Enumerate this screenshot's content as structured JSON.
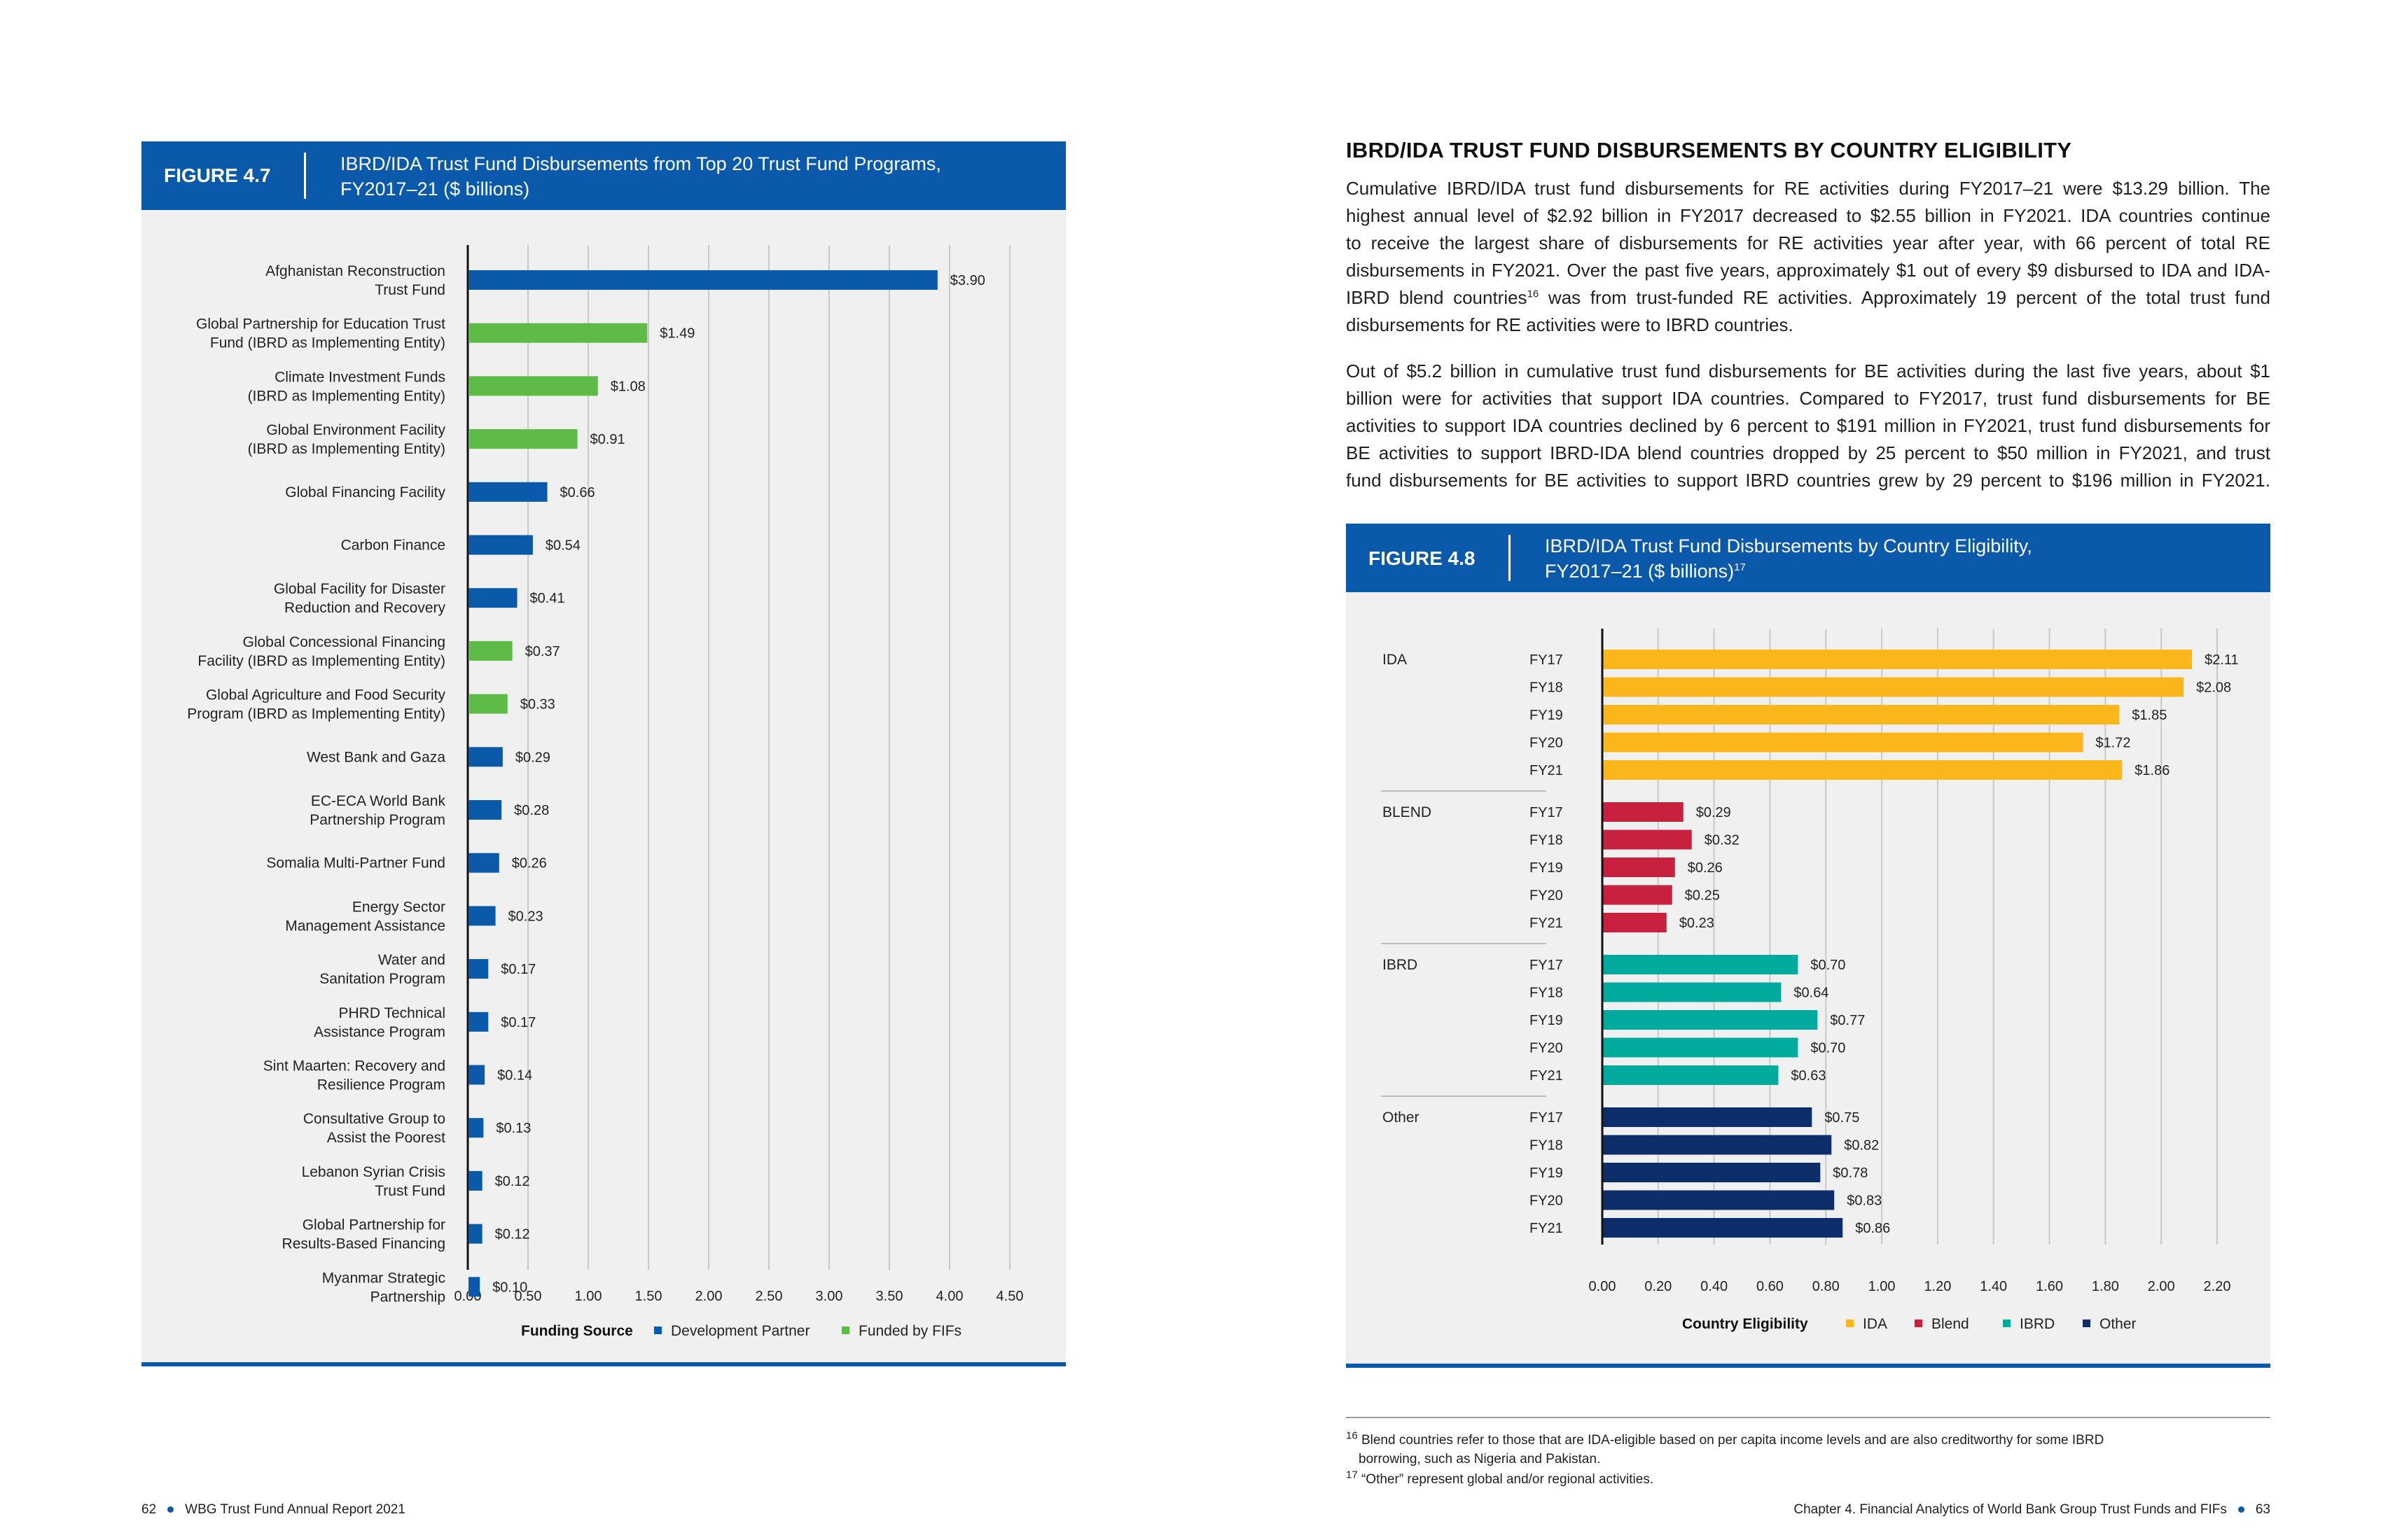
{
  "left_page": {
    "figure": {
      "label": "FIGURE 4.7",
      "title_line1": "IBRD/IDA Trust Fund Disbursements from Top 20 Trust Fund Programs,",
      "title_line2": "FY2017–21 ($ billions)"
    },
    "footer": {
      "page_number": "62",
      "report": "WBG Trust Fund Annual Report 2021"
    }
  },
  "right_page": {
    "heading": "IBRD/IDA TRUST FUND DISBURSEMENTS BY COUNTRY ELIGIBILITY",
    "paragraph1_lines": [
      "Cumulative IBRD/IDA trust fund disbursements for RE activities during FY2017–21 were $13.29 billion. The",
      "highest annual level of $2.92 billion in FY2017 decreased to $2.55 billion in FY2021. IDA countries continue",
      "to receive the largest share of disbursements for RE activities year after year, with 66 percent of total RE",
      "disbursements in FY2021. Over the past five years, approximately $1 out of every $9 disbursed to IDA and IDA-",
      "IBRD blend countries",
      "disbursements for RE activities were to IBRD countries."
    ],
    "paragraph1_sup": "16",
    "paragraph1_line5_rest": " was from trust-funded RE activities. Approximately 19 percent of the total trust fund",
    "paragraph2_lines": [
      "Out of $5.2 billion in cumulative trust fund disbursements for BE activities during the last five years, about $1",
      "billion were for activities that support IDA countries. Compared to FY2017, trust fund disbursements for BE",
      "activities to support IDA countries declined by 6 percent to $191 million in FY2021, trust fund disbursements for",
      "BE activities to support IBRD-IDA blend countries dropped by 25 percent to $50 million in FY2021, and trust",
      "fund disbursements for BE activities to support IBRD countries grew by 29 percent to $196 million in FY2021."
    ],
    "figure": {
      "label": "FIGURE 4.8",
      "title_line1": "IBRD/IDA Trust Fund Disbursements by Country Eligibility,",
      "title_line2": "FY2017–21 ($ billions)",
      "title_sup": "17"
    },
    "footnotes": [
      {
        "num": "16",
        "text": "Blend countries refer to those that are IDA-eligible based on per capita income levels and are also creditworthy for some IBRD",
        "text2": "borrowing, such as Nigeria and Pakistan."
      },
      {
        "num": "17",
        "text": "“Other” represent global and/or regional activities."
      }
    ],
    "footer": {
      "chapter": "Chapter 4. Financial Analytics of World Bank Group Trust Funds and FIFs",
      "page_number": "63"
    }
  },
  "chart_data": [
    {
      "type": "bar",
      "orientation": "horizontal",
      "categories": [
        [
          "Afghanistan Reconstruction",
          "Trust Fund"
        ],
        [
          "Global Partnership for Education Trust",
          "Fund (IBRD as Implementing Entity)"
        ],
        [
          "Climate Investment Funds",
          "(IBRD as Implementing Entity)"
        ],
        [
          "Global Environment Facility",
          "(IBRD as Implementing Entity)"
        ],
        [
          "Global Financing Facility"
        ],
        [
          "Carbon Finance"
        ],
        [
          "Global Facility for Disaster",
          "Reduction and Recovery"
        ],
        [
          "Global Concessional Financing",
          "Facility (IBRD as Implementing Entity)"
        ],
        [
          "Global Agriculture and Food Security",
          "Program (IBRD as Implementing Entity)"
        ],
        [
          "West Bank and Gaza"
        ],
        [
          "EC-ECA World Bank",
          "Partnership Program"
        ],
        [
          "Somalia Multi-Partner Fund"
        ],
        [
          "Energy Sector",
          "Management Assistance"
        ],
        [
          "Water and",
          "Sanitation Program"
        ],
        [
          "PHRD Technical",
          "Assistance Program"
        ],
        [
          "Sint Maarten: Recovery and",
          "Resilience Program"
        ],
        [
          "Consultative Group to",
          "Assist the Poorest"
        ],
        [
          "Lebanon Syrian Crisis",
          "Trust Fund"
        ],
        [
          "Global Partnership for",
          "Results-Based Financing"
        ],
        [
          "Myanmar Strategic",
          "Partnership"
        ]
      ],
      "values": [
        3.9,
        1.49,
        1.08,
        0.91,
        0.66,
        0.54,
        0.41,
        0.37,
        0.33,
        0.29,
        0.28,
        0.26,
        0.23,
        0.17,
        0.17,
        0.14,
        0.13,
        0.12,
        0.12,
        0.1
      ],
      "value_labels": [
        "$3.90",
        "$1.49",
        "$1.08",
        "$0.91",
        "$0.66",
        "$0.54",
        "$0.41",
        "$0.37",
        "$0.33",
        "$0.29",
        "$0.28",
        "$0.26",
        "$0.23",
        "$0.17",
        "$0.17",
        "$0.14",
        "$0.13",
        "$0.12",
        "$0.12",
        "$0.10"
      ],
      "source": [
        "dp",
        "fif",
        "fif",
        "fif",
        "dp",
        "dp",
        "dp",
        "fif",
        "fif",
        "dp",
        "dp",
        "dp",
        "dp",
        "dp",
        "dp",
        "dp",
        "dp",
        "dp",
        "dp",
        "dp"
      ],
      "xlim": [
        0,
        4.5
      ],
      "xticks": [
        "0.00",
        "0.50",
        "1.00",
        "1.50",
        "2.00",
        "2.50",
        "3.00",
        "3.50",
        "4.00",
        "4.50"
      ],
      "grid": true,
      "legend": {
        "title": "Funding Source",
        "position": "bottom",
        "items": [
          {
            "key": "dp",
            "name": "Development Partner",
            "color": "#0a59ab"
          },
          {
            "key": "fif",
            "name": "Funded by FIFs",
            "color": "#5dbb46"
          }
        ]
      }
    },
    {
      "type": "bar",
      "orientation": "horizontal",
      "groups": [
        {
          "name": "IDA",
          "key": "ida",
          "color": "#fbb61b",
          "years": [
            "FY17",
            "FY18",
            "FY19",
            "FY20",
            "FY21"
          ],
          "values": [
            2.11,
            2.08,
            1.85,
            1.72,
            1.86
          ],
          "value_labels": [
            "$2.11",
            "$2.08",
            "$1.85",
            "$1.72",
            "$1.86"
          ]
        },
        {
          "name": "BLEND",
          "key": "blend",
          "color": "#c8203f",
          "years": [
            "FY17",
            "FY18",
            "FY19",
            "FY20",
            "FY21"
          ],
          "values": [
            0.29,
            0.32,
            0.26,
            0.25,
            0.23
          ],
          "value_labels": [
            "$0.29",
            "$0.32",
            "$0.26",
            "$0.25",
            "$0.23"
          ]
        },
        {
          "name": "IBRD",
          "key": "ibrd",
          "color": "#00ab9e",
          "years": [
            "FY17",
            "FY18",
            "FY19",
            "FY20",
            "FY21"
          ],
          "values": [
            0.7,
            0.64,
            0.77,
            0.7,
            0.63
          ],
          "value_labels": [
            "$0.70",
            "$0.64",
            "$0.77",
            "$0.70",
            "$0.63"
          ]
        },
        {
          "name": "Other",
          "key": "other",
          "color": "#0d2d6b",
          "years": [
            "FY17",
            "FY18",
            "FY19",
            "FY20",
            "FY21"
          ],
          "values": [
            0.75,
            0.82,
            0.78,
            0.83,
            0.86
          ],
          "value_labels": [
            "$0.75",
            "$0.82",
            "$0.78",
            "$0.83",
            "$0.86"
          ]
        }
      ],
      "xlim": [
        0,
        2.2
      ],
      "xticks": [
        "0.00",
        "0.20",
        "0.40",
        "0.60",
        "0.80",
        "1.00",
        "1.20",
        "1.40",
        "1.60",
        "1.80",
        "2.00",
        "2.20"
      ],
      "grid": true,
      "legend": {
        "title": "Country Eligibility",
        "position": "bottom",
        "items": [
          {
            "name": "IDA",
            "color": "#fbb61b"
          },
          {
            "name": "Blend",
            "color": "#c8203f"
          },
          {
            "name": "IBRD",
            "color": "#00ab9e"
          },
          {
            "name": "Other",
            "color": "#0d2d6b"
          }
        ]
      }
    }
  ]
}
